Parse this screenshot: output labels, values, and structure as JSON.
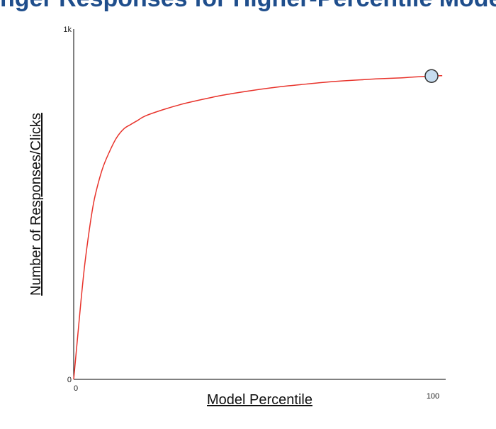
{
  "chart_data": {
    "type": "line",
    "title": "",
    "title_partial": "nger Responses for Higher-Percentile Models",
    "xlabel": "Model Percentile",
    "ylabel": "Number of Responses/Clicks",
    "xlim": [
      0,
      100
    ],
    "ylim": [
      0,
      1000
    ],
    "x_ticks": [
      {
        "value": 0,
        "label": "0"
      },
      {
        "value": 100,
        "label": "100"
      }
    ],
    "y_ticks": [
      {
        "value": 0,
        "label": "0"
      },
      {
        "value": 1000,
        "label": "1k"
      }
    ],
    "series": [
      {
        "color": "#e8332b",
        "x": [
          0,
          1,
          2,
          3,
          4,
          5,
          6,
          8,
          10,
          12,
          14,
          16,
          18,
          20,
          25,
          30,
          35,
          40,
          45,
          50,
          55,
          60,
          65,
          70,
          75,
          80,
          85,
          90,
          95,
          100,
          103
        ],
        "y": [
          0,
          110,
          220,
          320,
          400,
          470,
          525,
          600,
          650,
          690,
          715,
          728,
          740,
          752,
          770,
          785,
          797,
          808,
          817,
          825,
          832,
          838,
          843,
          848,
          852,
          855,
          858,
          860,
          863,
          866,
          867
        ]
      }
    ],
    "marker": {
      "x": 100,
      "y": 866,
      "fill": "#c6dcef",
      "stroke": "#333333"
    },
    "grid": false,
    "legend": "none"
  }
}
